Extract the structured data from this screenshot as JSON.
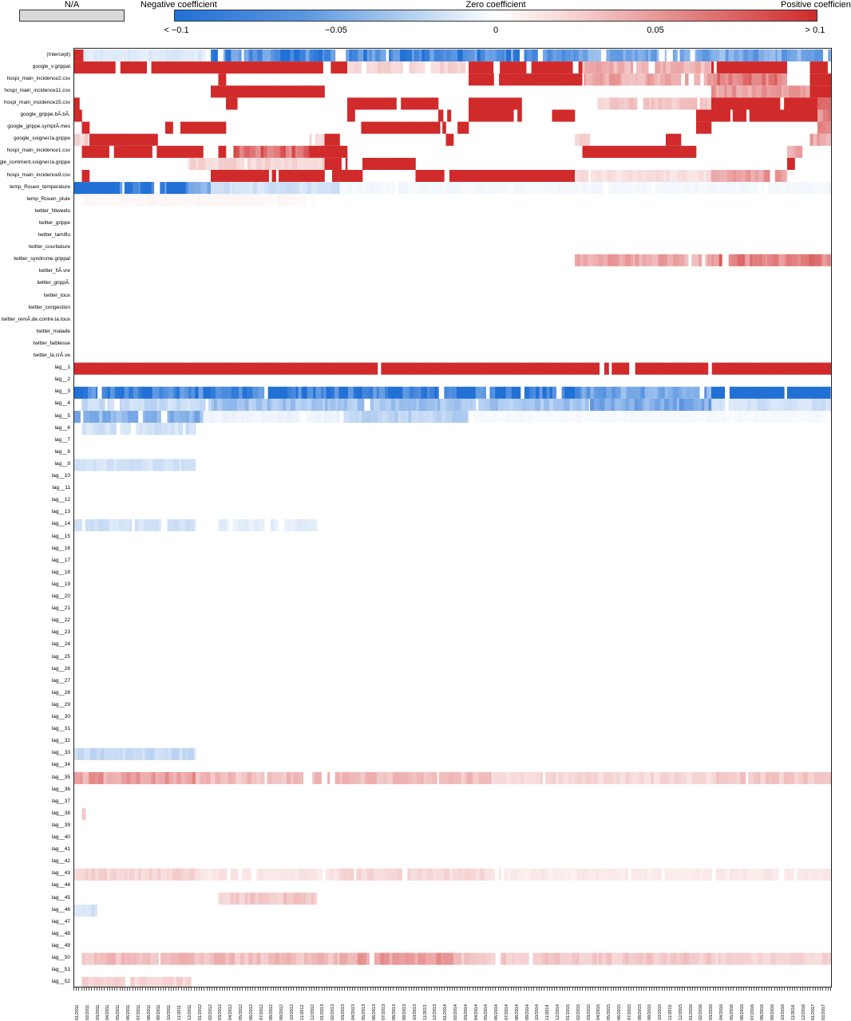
{
  "legend": {
    "na_label": "N/A",
    "negative_label": "Negative coefficient",
    "zero_label": "Zero coefficient",
    "positive_label": "Positive coefficient",
    "ticks": [
      "< −0.1",
      "−0.05",
      "0",
      "0.05",
      "> 0.1"
    ],
    "colors": {
      "negative": "#2070d6",
      "zero": "#ffffff",
      "positive": "#d02a2a",
      "na": "#d9d9d9"
    }
  },
  "chart_data": {
    "type": "heatmap",
    "title": "",
    "xlabel": "",
    "ylabel": "",
    "color_range": [
      -0.1,
      0.1
    ],
    "rows": [
      "(Intercept)",
      "google_v.grippal",
      "hospi_main_incidence2.csv",
      "hospi_main_incidence11.csv",
      "hospi_main_incidence15.csv",
      "google_grippe.bÃ.bÃ.",
      "google_grippe.symptÃ.mes",
      "google_soigner.la.grippe",
      "hospi_main_incidence1.csv",
      "google_comment.soigner.la.grippe",
      "hospi_main_incidence9.csv",
      "temp_Rouen_temperature",
      "temp_Rouen_pluie",
      "twitter_Ntweets",
      "twitter_grippe",
      "twitter_tamiflu",
      "twitter_courbature",
      "twitter_syndrome.grippal",
      "twitter_fiÃ.vre",
      "twitter_grippÃ.",
      "twitter_toux",
      "twitter_congestion",
      "twitter_remÃ.de.contre.la.toux",
      "twitter_malade",
      "twitter_faiblesse",
      "twitter_la.crÃ.ve",
      "lag__1",
      "lag__2",
      "lag__3",
      "lag__4",
      "lag__5",
      "lag__6",
      "lag__7",
      "lag__8",
      "lag__9",
      "lag__10",
      "lag__11",
      "lag__12",
      "lag__13",
      "lag__14",
      "lag__15",
      "lag__16",
      "lag__17",
      "lag__18",
      "lag__19",
      "lag__20",
      "lag__21",
      "lag__22",
      "lag__23",
      "lag__24",
      "lag__25",
      "lag__26",
      "lag__27",
      "lag__28",
      "lag__29",
      "lag__30",
      "lag__31",
      "lag__32",
      "lag__33",
      "lag__34",
      "lag__35",
      "lag__36",
      "lag__37",
      "lag__38",
      "lag__39",
      "lag__40",
      "lag__41",
      "lag__42",
      "lag__43",
      "lag__44",
      "lag__45",
      "lag__46",
      "lag__47",
      "lag__48",
      "lag__49",
      "lag__50",
      "lag__51",
      "lag__52"
    ],
    "x_tick_labels": [
      "01/2011",
      "02/2011",
      "03/2011",
      "04/2011",
      "05/2011",
      "06/2011",
      "07/2011",
      "08/2011",
      "09/2011",
      "10/2011",
      "11/2011",
      "12/2011",
      "01/2012",
      "02/2012",
      "03/2012",
      "04/2012",
      "05/2012",
      "06/2012",
      "07/2012",
      "08/2012",
      "09/2012",
      "10/2012",
      "11/2012",
      "12/2012",
      "01/2013",
      "02/2013",
      "03/2013",
      "04/2013",
      "05/2013",
      "06/2013",
      "07/2013",
      "08/2013",
      "09/2013",
      "10/2013",
      "11/2013",
      "12/2013",
      "01/2014",
      "02/2014",
      "03/2014",
      "04/2014",
      "05/2014",
      "06/2014",
      "07/2014",
      "08/2014",
      "09/2014",
      "10/2014",
      "11/2014",
      "12/2014",
      "01/2015",
      "02/2015",
      "03/2015",
      "04/2015",
      "05/2015",
      "06/2015",
      "07/2015",
      "08/2015",
      "09/2015",
      "10/2015",
      "11/2015",
      "12/2015",
      "01/2016",
      "02/2016",
      "03/2016",
      "04/2016",
      "05/2016",
      "06/2016",
      "07/2016",
      "08/2016",
      "09/2016",
      "10/2016",
      "11/2016",
      "12/2016",
      "01/2017",
      "02/2017"
    ],
    "x_range": [
      0,
      1
    ],
    "row_segments": {
      "(Intercept)": [
        [
          0,
          0.012,
          0.1
        ],
        [
          0.012,
          0.18,
          -0.015
        ],
        [
          0.18,
          0.66,
          -0.08
        ],
        [
          0.66,
          1,
          -0.06
        ]
      ],
      "google_v.grippal": [
        [
          0,
          0.36,
          0.1
        ],
        [
          0.36,
          0.52,
          0.02
        ],
        [
          0.52,
          0.67,
          0.1
        ],
        [
          0.67,
          0.84,
          0.035
        ],
        [
          0.84,
          0.94,
          0.1
        ],
        [
          0.94,
          0.97,
          0
        ],
        [
          0.97,
          1,
          0.1
        ]
      ],
      "hospi_main_incidence2.csv": [
        [
          0.19,
          0.2,
          0.1
        ],
        [
          0.36,
          0.36,
          0.1
        ],
        [
          0.52,
          0.67,
          0.1
        ],
        [
          0.67,
          0.84,
          0.04
        ],
        [
          0.84,
          0.94,
          0.06
        ],
        [
          0.94,
          0.97,
          0
        ],
        [
          0.97,
          1,
          0.1
        ]
      ],
      "hospi_main_incidence11.csv": [
        [
          0.18,
          0.33,
          0.1
        ],
        [
          0.84,
          0.97,
          0.045
        ],
        [
          0.97,
          1,
          0.1
        ]
      ],
      "hospi_main_incidence15.csv": [
        [
          0,
          0.012,
          0.1
        ],
        [
          0.2,
          0.215,
          0.1
        ],
        [
          0.36,
          0.48,
          0.1
        ],
        [
          0.52,
          0.59,
          0.1
        ],
        [
          0.69,
          0.84,
          0.025
        ],
        [
          0.84,
          0.98,
          0.1
        ],
        [
          0.98,
          1,
          0.06
        ]
      ],
      "google_grippe.bÃ.bÃ.": [
        [
          0,
          0.01,
          0.1
        ],
        [
          0.36,
          0.37,
          0.1
        ],
        [
          0.48,
          0.5,
          0.1
        ],
        [
          0.52,
          0.59,
          0.1
        ],
        [
          0.63,
          0.66,
          0.1
        ],
        [
          0.82,
          0.84,
          0.1
        ],
        [
          0.84,
          0.98,
          0.1
        ],
        [
          0.98,
          1,
          0.06
        ]
      ],
      "google_grippe.symptÃ.mes": [
        [
          0.01,
          0.02,
          0.1
        ],
        [
          0.12,
          0.13,
          0.1
        ],
        [
          0.14,
          0.2,
          0.1
        ],
        [
          0.37,
          0.49,
          0.1
        ],
        [
          0.5,
          0.52,
          0.1
        ],
        [
          0.82,
          0.84,
          0.1
        ],
        [
          0.98,
          1,
          0.06
        ]
      ],
      "google_soigner.la.grippe": [
        [
          0,
          0.08,
          0.02
        ],
        [
          0.02,
          0.11,
          0.1
        ],
        [
          0.31,
          0.33,
          0.02
        ],
        [
          0.33,
          0.35,
          0.1
        ],
        [
          0.49,
          0.5,
          0.1
        ],
        [
          0.66,
          0.68,
          0.02
        ],
        [
          0.78,
          0.8,
          0.1
        ],
        [
          0.97,
          1,
          0.04
        ]
      ],
      "hospi_main_incidence1.csv": [
        [
          0.01,
          0.17,
          0.1
        ],
        [
          0.19,
          0.2,
          0.1
        ],
        [
          0.21,
          0.31,
          0.07
        ],
        [
          0.31,
          0.36,
          0.1
        ],
        [
          0.67,
          0.82,
          0.1
        ],
        [
          0.94,
          0.96,
          0.04
        ]
      ],
      "google_comment.soigner.la.grippe": [
        [
          0.15,
          0.33,
          0.02
        ],
        [
          0.33,
          0.36,
          0.1
        ],
        [
          0.38,
          0.45,
          0.1
        ],
        [
          0.94,
          0.95,
          0.1
        ]
      ],
      "hospi_main_incidence9.csv": [
        [
          0.01,
          0.02,
          0.1
        ],
        [
          0.18,
          0.33,
          0.1
        ],
        [
          0.34,
          0.38,
          0.1
        ],
        [
          0.45,
          0.66,
          0.1
        ],
        [
          0.66,
          0.84,
          0.015
        ],
        [
          0.84,
          0.94,
          0.045
        ]
      ],
      "temp_Rouen_temperature": [
        [
          0,
          0.005,
          -0.1
        ],
        [
          0.005,
          0.06,
          -0.1
        ],
        [
          0.06,
          0.15,
          -0.09
        ],
        [
          0.15,
          0.18,
          -0.05
        ],
        [
          0.18,
          0.35,
          -0.02
        ],
        [
          0.35,
          1,
          -0.005
        ]
      ],
      "temp_Rouen_pluie": [
        [
          0.01,
          0.32,
          0.004
        ]
      ],
      "twitter_Ntweets": [],
      "twitter_grippe": [],
      "twitter_tamiflu": [],
      "twitter_courbature": [],
      "twitter_syndrome.grippal": [
        [
          0.66,
          0.84,
          0.04
        ],
        [
          0.84,
          1,
          0.06
        ]
      ],
      "twitter_fiÃ.vre": [],
      "twitter_grippÃ.": [],
      "twitter_toux": [],
      "twitter_congestion": [],
      "twitter_remÃ.de.contre.la.toux": [],
      "twitter_malade": [],
      "twitter_faiblesse": [],
      "twitter_la.crÃ.ve": [],
      "lag__1": [
        [
          0,
          1,
          0.1
        ]
      ],
      "lag__2": [],
      "lag__3": [
        [
          0,
          0.67,
          -0.09
        ],
        [
          0.67,
          0.84,
          -0.06
        ],
        [
          0.84,
          1,
          -0.1
        ]
      ],
      "lag__4": [
        [
          0.01,
          0.18,
          -0.025
        ],
        [
          0.18,
          0.35,
          -0.04
        ],
        [
          0.35,
          0.68,
          -0.04
        ],
        [
          0.68,
          0.84,
          -0.06
        ],
        [
          0.84,
          1,
          -0.02
        ]
      ],
      "lag__5": [
        [
          0,
          0.17,
          -0.05
        ],
        [
          0.17,
          0.35,
          -0.008
        ],
        [
          0.35,
          0.52,
          -0.03
        ],
        [
          0.52,
          1,
          -0.004
        ]
      ],
      "lag__6": [
        [
          0.01,
          0.16,
          -0.02
        ]
      ],
      "lag__7": [],
      "lag__8": [],
      "lag__9": [
        [
          0,
          0.16,
          -0.02
        ]
      ],
      "lag__10": [],
      "lag__11": [],
      "lag__12": [],
      "lag__13": [],
      "lag__14": [
        [
          0,
          0.16,
          -0.02
        ],
        [
          0.19,
          0.32,
          -0.012
        ]
      ],
      "lag__15": [],
      "lag__16": [],
      "lag__17": [],
      "lag__18": [],
      "lag__19": [],
      "lag__20": [],
      "lag__21": [],
      "lag__22": [],
      "lag__23": [],
      "lag__24": [],
      "lag__25": [],
      "lag__26": [],
      "lag__27": [],
      "lag__28": [],
      "lag__29": [],
      "lag__30": [],
      "lag__31": [],
      "lag__32": [],
      "lag__33": [
        [
          0,
          0.16,
          -0.025
        ]
      ],
      "lag__34": [],
      "lag__35": [
        [
          0,
          0.16,
          0.045
        ],
        [
          0.16,
          0.35,
          0.03
        ],
        [
          0.35,
          0.55,
          0.03
        ],
        [
          0.55,
          0.84,
          0.018
        ],
        [
          0.84,
          1,
          0.025
        ]
      ],
      "lag__36": [],
      "lag__37": [],
      "lag__38": [
        [
          0.01,
          0.015,
          0.02
        ]
      ],
      "lag__39": [],
      "lag__40": [],
      "lag__41": [],
      "lag__42": [],
      "lag__43": [
        [
          0,
          0.16,
          0.02
        ],
        [
          0.16,
          0.35,
          0.012
        ],
        [
          0.35,
          0.55,
          0.018
        ],
        [
          0.55,
          1,
          0.01
        ]
      ],
      "lag__44": [],
      "lag__45": [
        [
          0.19,
          0.32,
          0.025
        ]
      ],
      "lag__46": [
        [
          0,
          0.03,
          -0.02
        ]
      ],
      "lag__47": [],
      "lag__48": [],
      "lag__49": [],
      "lag__50": [
        [
          0.01,
          0.35,
          0.03
        ],
        [
          0.35,
          0.5,
          0.045
        ],
        [
          0.5,
          0.84,
          0.025
        ],
        [
          0.84,
          1,
          0.02
        ]
      ],
      "lag__51": [],
      "lag__52": [
        [
          0.01,
          0.16,
          0.02
        ]
      ]
    }
  }
}
